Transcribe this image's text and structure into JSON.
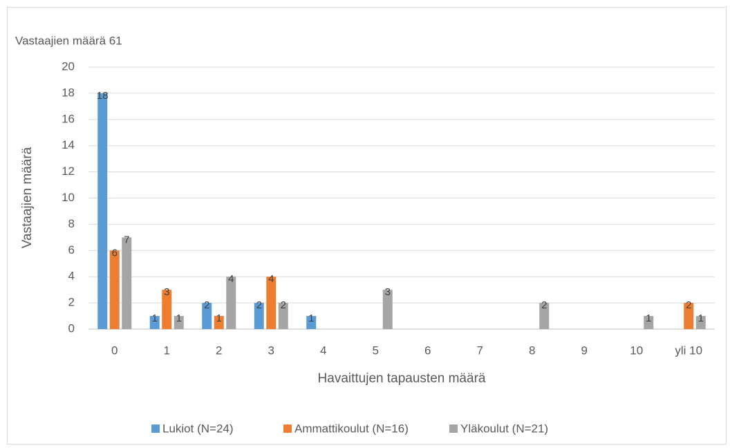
{
  "chart_data": {
    "type": "bar",
    "title": "Vastaajien määrä 61",
    "x_label": "Havaittujen tapausten määrä",
    "y_label": "Vastaajien määrä",
    "categories": [
      "0",
      "1",
      "2",
      "3",
      "4",
      "5",
      "6",
      "7",
      "8",
      "9",
      "10",
      "yli 10"
    ],
    "series": [
      {
        "name": "Lukiot (N=24)",
        "color": "#5b9bd5",
        "values": [
          18,
          1,
          2,
          2,
          1,
          0,
          0,
          0,
          0,
          0,
          0,
          0
        ]
      },
      {
        "name": "Ammattikoulut (N=16)",
        "color": "#ed7d31",
        "values": [
          6,
          3,
          1,
          4,
          0,
          0,
          0,
          0,
          0,
          0,
          0,
          2
        ]
      },
      {
        "name": "Yläkoulut (N=21)",
        "color": "#a5a5a5",
        "values": [
          7,
          1,
          4,
          2,
          0,
          3,
          0,
          0,
          2,
          0,
          1,
          1
        ]
      }
    ],
    "ylim": [
      0,
      20
    ],
    "yticks": [
      0,
      2,
      4,
      6,
      8,
      10,
      12,
      14,
      16,
      18,
      20
    ],
    "grid": true,
    "legend": "bottom"
  }
}
